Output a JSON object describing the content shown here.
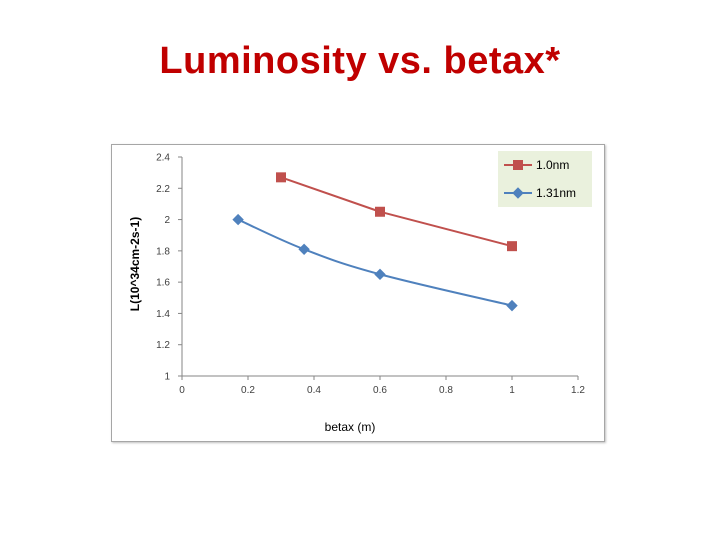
{
  "slide": {
    "title": "Luminosity vs. betax*"
  },
  "chart_data": {
    "type": "line",
    "title": "",
    "xlabel": "betax (m)",
    "ylabel": "L(10^34cm-2s-1)",
    "xlim": [
      0,
      1.2
    ],
    "ylim": [
      1,
      2.4
    ],
    "x_ticks": [
      "0",
      "0.2",
      "0.4",
      "0.6",
      "0.8",
      "1",
      "1.2"
    ],
    "y_ticks": [
      "1",
      "1.2",
      "1.4",
      "1.6",
      "1.8",
      "2",
      "2.2",
      "2.4"
    ],
    "grid": false,
    "legend_position": "top-right",
    "series": [
      {
        "name": "1.0nm",
        "color": "#c0504d",
        "marker": "square",
        "smooth": false,
        "x": [
          0.3,
          0.6,
          1.0
        ],
        "y": [
          2.27,
          2.05,
          1.83
        ]
      },
      {
        "name": "1.31nm",
        "color": "#4f81bd",
        "marker": "diamond",
        "smooth": true,
        "x": [
          0.17,
          0.37,
          0.6,
          1.0
        ],
        "y": [
          2.0,
          1.81,
          1.65,
          1.45
        ]
      }
    ]
  }
}
